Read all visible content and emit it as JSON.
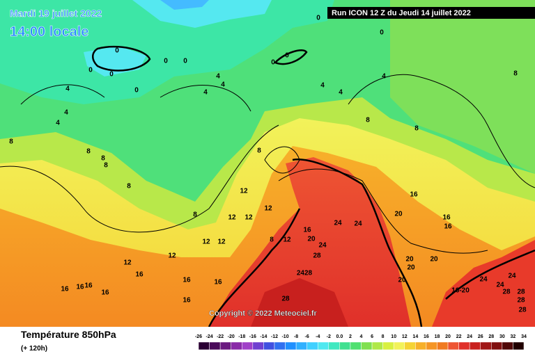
{
  "header": {
    "date": "Mardi 19 juillet 2022",
    "time": "14:00 locale",
    "run": "Run ICON 12 Z du Jeudi 14 juillet 2022"
  },
  "copyright": "Copyright © 2022 Meteociel.fr",
  "footer": {
    "title": "Température 850hPa",
    "subtitle": "(+ 120h)"
  },
  "legend": {
    "labels": [
      "-26",
      "-24",
      "-22",
      "-20",
      "-18",
      "-16",
      "-14",
      "-12",
      "-10",
      "-8",
      "-6",
      "-4",
      "-2",
      "0.0",
      "2",
      "4",
      "6",
      "8",
      "10",
      "12",
      "14",
      "16",
      "18",
      "20",
      "22",
      "24",
      "26",
      "28",
      "30",
      "32",
      "34"
    ]
  },
  "map": {
    "contour_labels": [
      "0",
      "0",
      "0",
      "0",
      "0",
      "0",
      "0",
      "0",
      "0",
      "0",
      "4",
      "4",
      "4",
      "4",
      "4",
      "4",
      "4",
      "4",
      "4",
      "8",
      "8",
      "8",
      "8",
      "8",
      "8",
      "8",
      "8",
      "8",
      "8",
      "8",
      "12",
      "12",
      "12",
      "12",
      "12",
      "12",
      "12",
      "12",
      "12",
      "16",
      "16",
      "16",
      "16",
      "16",
      "16",
      "16",
      "16",
      "16",
      "16",
      "16",
      "16",
      "16-20",
      "20",
      "20",
      "20",
      "20",
      "20",
      "20",
      "24",
      "24",
      "24",
      "24",
      "24",
      "24",
      "28",
      "2428",
      "28",
      "28",
      "28",
      "28",
      "28"
    ]
  }
}
